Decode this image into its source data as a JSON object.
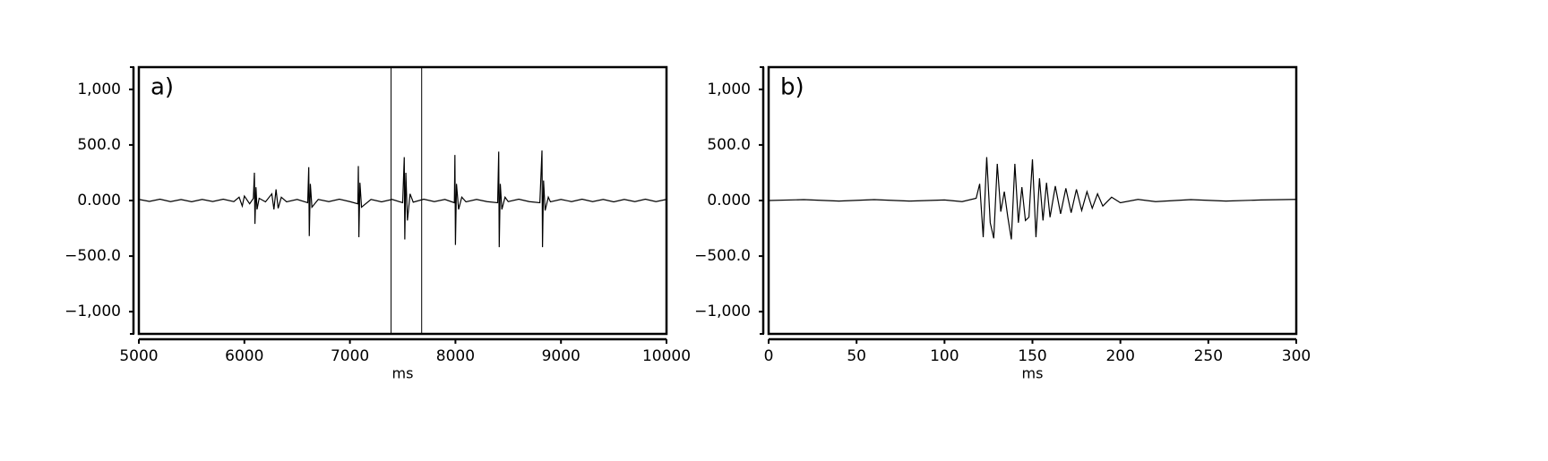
{
  "chart_data": [
    {
      "type": "line",
      "label": "a)",
      "xlabel": "ms",
      "xlim": [
        5000,
        10000
      ],
      "xticks": [
        5000,
        6000,
        7000,
        8000,
        9000,
        10000
      ],
      "ylim": [
        -1200,
        1200
      ],
      "yticks": [
        {
          "value": 1000,
          "label": "1,000"
        },
        {
          "value": 500,
          "label": "500.0"
        },
        {
          "value": 0,
          "label": "0.000"
        },
        {
          "value": -500,
          "label": "−500.0"
        },
        {
          "value": -1000,
          "label": "−1,000"
        }
      ],
      "markers": [
        7390,
        7680
      ],
      "series": [
        {
          "color": "#000000",
          "x": [
            5000,
            5100,
            5200,
            5300,
            5400,
            5500,
            5600,
            5700,
            5800,
            5900,
            5950,
            5980,
            6000,
            6050,
            6085,
            6095,
            6100,
            6110,
            6120,
            6140,
            6200,
            6260,
            6280,
            6300,
            6320,
            6350,
            6400,
            6500,
            6600,
            6610,
            6615,
            6625,
            6640,
            6700,
            6800,
            6900,
            7000,
            7075,
            7080,
            7085,
            7095,
            7110,
            7200,
            7300,
            7400,
            7500,
            7515,
            7520,
            7530,
            7545,
            7570,
            7600,
            7700,
            7800,
            7900,
            7990,
            7995,
            8000,
            8010,
            8030,
            8060,
            8100,
            8200,
            8300,
            8400,
            8410,
            8415,
            8425,
            8440,
            8470,
            8500,
            8600,
            8700,
            8800,
            8820,
            8825,
            8835,
            8850,
            8880,
            8900,
            9000,
            9100,
            9200,
            9300,
            9400,
            9500,
            9600,
            9700,
            9800,
            9900,
            10000
          ],
          "values": [
            10,
            -8,
            12,
            -10,
            9,
            -11,
            10,
            -9,
            12,
            -10,
            30,
            -50,
            40,
            -30,
            20,
            250,
            -210,
            120,
            -80,
            20,
            -12,
            60,
            -80,
            100,
            -70,
            30,
            -12,
            10,
            -20,
            300,
            -320,
            150,
            -60,
            10,
            -10,
            12,
            -10,
            -30,
            310,
            -330,
            160,
            -60,
            10,
            -12,
            10,
            -20,
            390,
            -350,
            250,
            -180,
            60,
            -15,
            12,
            -10,
            10,
            -20,
            410,
            -400,
            150,
            -80,
            30,
            -12,
            10,
            -10,
            -20,
            440,
            -420,
            150,
            -80,
            30,
            -10,
            12,
            -10,
            -20,
            450,
            -420,
            180,
            -90,
            30,
            -12,
            10,
            -10,
            12,
            -10,
            10,
            -12,
            10,
            -10,
            12,
            -10,
            10
          ]
        }
      ]
    },
    {
      "type": "line",
      "label": "b)",
      "xlabel": "ms",
      "xlim": [
        0,
        300
      ],
      "xticks": [
        0,
        50,
        100,
        150,
        200,
        250,
        300
      ],
      "ylim": [
        -1200,
        1200
      ],
      "yticks": [
        {
          "value": 1000,
          "label": "1,000"
        },
        {
          "value": 500,
          "label": "500.0"
        },
        {
          "value": 0,
          "label": "0.000"
        },
        {
          "value": -500,
          "label": "−500.0"
        },
        {
          "value": -1000,
          "label": "−1,000"
        }
      ],
      "series": [
        {
          "color": "#000000",
          "x": [
            0,
            20,
            40,
            60,
            80,
            100,
            110,
            118,
            120,
            122,
            124,
            126,
            128,
            130,
            132,
            134,
            136,
            138,
            140,
            142,
            144,
            146,
            148,
            150,
            152,
            154,
            156,
            158,
            160,
            163,
            166,
            169,
            172,
            175,
            178,
            181,
            184,
            187,
            190,
            195,
            200,
            210,
            220,
            240,
            260,
            280,
            300
          ],
          "values": [
            0,
            8,
            -5,
            8,
            -5,
            5,
            -10,
            20,
            150,
            -330,
            390,
            -200,
            -340,
            330,
            -100,
            80,
            -150,
            -350,
            330,
            -200,
            120,
            -180,
            -150,
            370,
            -330,
            200,
            -180,
            160,
            -150,
            130,
            -120,
            110,
            -110,
            100,
            -90,
            80,
            -70,
            60,
            -50,
            30,
            -20,
            10,
            -10,
            8,
            -5,
            5,
            10
          ]
        }
      ]
    }
  ]
}
